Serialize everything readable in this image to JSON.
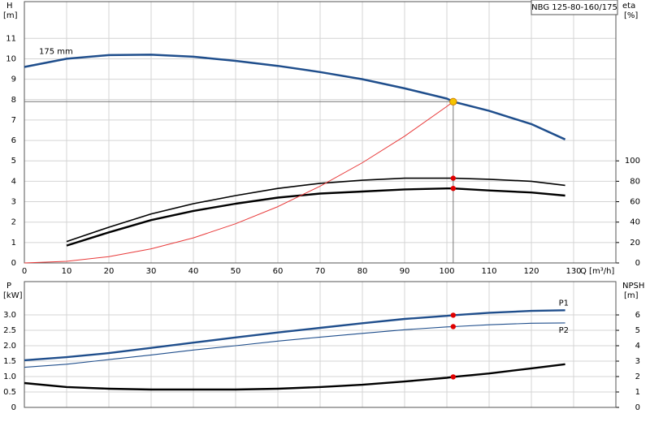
{
  "chart_data": [
    {
      "type": "line",
      "title": "NBG 125-80-160/175",
      "ylabel": "H",
      "yunit": "[m]",
      "y2label": "eta",
      "y2unit": "[%]",
      "xlabel": "Q [m³/h]",
      "x": [
        0,
        10,
        20,
        30,
        40,
        50,
        60,
        70,
        80,
        90,
        100,
        101.5,
        110,
        120,
        128
      ],
      "xlim": [
        0,
        140
      ],
      "xticks": [
        0,
        10,
        20,
        30,
        40,
        50,
        60,
        70,
        80,
        90,
        100,
        110,
        120,
        130
      ],
      "ylim": [
        0,
        12.8
      ],
      "yticks": [
        0,
        1,
        2,
        3,
        4,
        5,
        6,
        7,
        8,
        9,
        10,
        11
      ],
      "y2lim": [
        0,
        256
      ],
      "y2ticks": [
        0,
        20,
        40,
        60,
        80,
        100
      ],
      "grid": true,
      "duty_point": {
        "x": 101.5,
        "y": 7.9,
        "color": "#f5c400"
      },
      "series": [
        {
          "name": "175 mm",
          "color": "#1f4e8c",
          "width": 2.5,
          "values": [
            9.6,
            10.0,
            10.18,
            10.2,
            10.1,
            9.9,
            9.65,
            9.35,
            9.0,
            8.55,
            8.05,
            7.9,
            7.45,
            6.8,
            6.05
          ]
        },
        {
          "color": "#000000",
          "width": 1.6,
          "axis": "y2",
          "point_color": "#e00000",
          "values": [
            null,
            21,
            35,
            48,
            58,
            66,
            73,
            78,
            81,
            83,
            83,
            83,
            82,
            80,
            76
          ]
        },
        {
          "color": "#000000",
          "width": 2.4,
          "axis": "y2",
          "point_color": "#e00000",
          "values": [
            null,
            17,
            30,
            42,
            51,
            58,
            64,
            68,
            70,
            72,
            73,
            73,
            71,
            69,
            66
          ]
        },
        {
          "color": "#e83a3a",
          "width": 1,
          "values": [
            0,
            0.08,
            0.31,
            0.69,
            1.23,
            1.92,
            2.76,
            3.76,
            4.91,
            6.21,
            7.67,
            7.9,
            null,
            null,
            null
          ]
        }
      ]
    },
    {
      "type": "line",
      "ylabel": "P",
      "yunit": "[kW]",
      "y2label": "NPSH",
      "y2unit": "[m]",
      "x": [
        0,
        10,
        20,
        30,
        40,
        50,
        60,
        70,
        80,
        90,
        100,
        101.5,
        110,
        120,
        128
      ],
      "xlim": [
        0,
        140
      ],
      "xticks": [
        0,
        10,
        20,
        30,
        40,
        50,
        60,
        70,
        80,
        90,
        100,
        110,
        120,
        130
      ],
      "ylim": [
        0,
        4.08
      ],
      "yticks": [
        0,
        0.5,
        {
          "value": 1,
          "label": "1.0"
        },
        1.5,
        {
          "value": 2,
          "label": "2.0"
        },
        2.5,
        {
          "value": 3,
          "label": "3.0"
        }
      ],
      "y2lim": [
        0,
        8.16
      ],
      "y2ticks": [
        0,
        1,
        2,
        3,
        4,
        5,
        6
      ],
      "grid": true,
      "series": [
        {
          "name": "P1",
          "color": "#1f4e8c",
          "width": 2.4,
          "point_color": "#e00000",
          "values": [
            1.53,
            1.63,
            1.76,
            1.93,
            2.1,
            2.27,
            2.43,
            2.58,
            2.73,
            2.87,
            2.97,
            2.99,
            3.07,
            3.13,
            3.15
          ]
        },
        {
          "name": "P2",
          "color": "#1f4e8c",
          "width": 1.1,
          "point_color": "#e00000",
          "values": [
            1.3,
            1.4,
            1.55,
            1.7,
            1.86,
            2.0,
            2.15,
            2.28,
            2.4,
            2.52,
            2.61,
            2.62,
            2.68,
            2.73,
            2.74
          ]
        },
        {
          "color": "#000000",
          "width": 2.4,
          "axis": "y2",
          "point_color": "#e00000",
          "values": [
            1.58,
            1.32,
            1.21,
            1.16,
            1.16,
            1.16,
            1.21,
            1.32,
            1.47,
            1.68,
            1.92,
            1.98,
            2.2,
            2.53,
            2.8
          ]
        }
      ]
    }
  ]
}
